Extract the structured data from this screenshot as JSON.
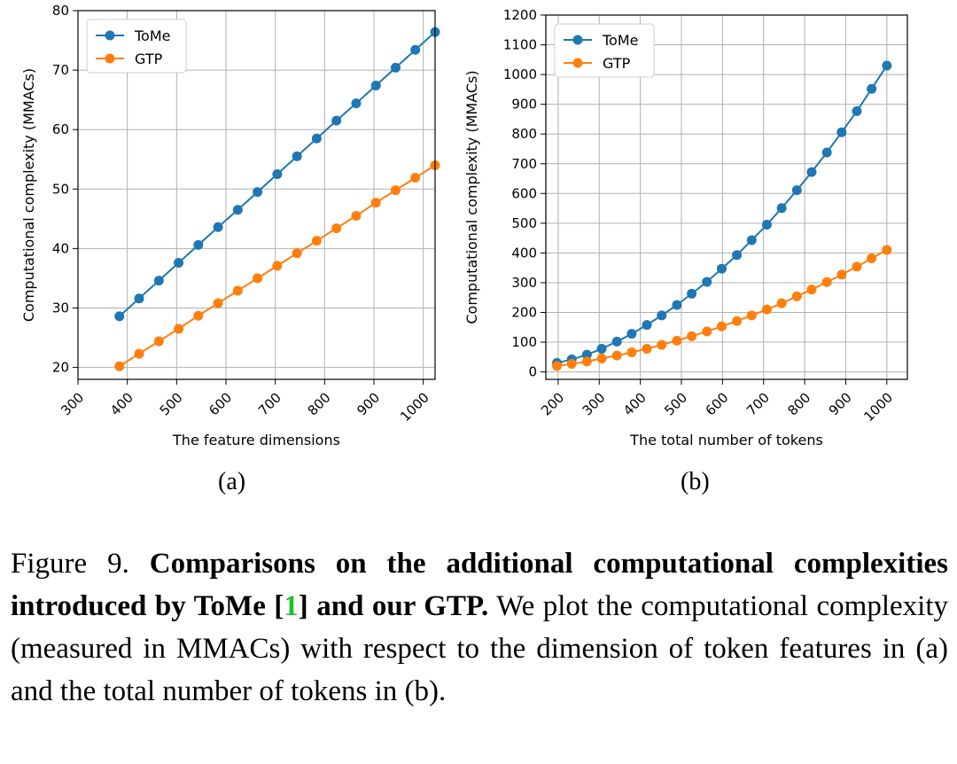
{
  "colors": {
    "tome": "#1f77b4",
    "gtp": "#ff7f0e",
    "grid": "#b0b0b0",
    "ref": "#1fbf2a"
  },
  "chart_data": [
    {
      "type": "line",
      "subcaption": "(a)",
      "xlabel": "The feature dimensions",
      "ylabel": "Computational complexity (MMACs)",
      "xlim": [
        300,
        1024
      ],
      "ylim": [
        18,
        80
      ],
      "xticks": [
        300,
        400,
        500,
        600,
        700,
        800,
        900,
        1000
      ],
      "yticks": [
        20,
        30,
        40,
        50,
        60,
        70,
        80
      ],
      "legend_position": "top-left",
      "x": [
        384,
        424,
        464,
        504,
        544,
        584,
        624,
        664,
        704,
        744,
        784,
        824,
        864,
        904,
        944,
        984,
        1024
      ],
      "series": [
        {
          "name": "ToMe",
          "color_key": "tome",
          "values": [
            28.6,
            31.6,
            34.6,
            37.6,
            40.6,
            43.6,
            46.5,
            49.5,
            52.5,
            55.5,
            58.5,
            61.5,
            64.4,
            67.4,
            70.4,
            73.4,
            76.4
          ]
        },
        {
          "name": "GTP",
          "color_key": "gtp",
          "values": [
            20.2,
            22.3,
            24.4,
            26.5,
            28.7,
            30.8,
            32.9,
            35.0,
            37.1,
            39.2,
            41.3,
            43.4,
            45.5,
            47.7,
            49.8,
            51.9,
            54.0
          ]
        }
      ]
    },
    {
      "type": "line",
      "subcaption": "(b)",
      "xlabel": "The total number of tokens",
      "ylabel": "Computational complexity (MMACs)",
      "xlim": [
        170,
        1050
      ],
      "ylim": [
        -25,
        1200
      ],
      "xticks": [
        200,
        300,
        400,
        500,
        600,
        700,
        800,
        900,
        1000
      ],
      "yticks": [
        0,
        100,
        200,
        300,
        400,
        500,
        600,
        700,
        800,
        900,
        1000,
        1100,
        1200
      ],
      "legend_position": "top-left",
      "x": [
        197,
        233,
        270,
        306,
        343,
        379,
        416,
        452,
        489,
        525,
        562,
        598,
        635,
        671,
        708,
        744,
        781,
        817,
        854,
        890,
        927,
        963,
        1000
      ],
      "series": [
        {
          "name": "ToMe",
          "color_key": "tome",
          "values": [
            30,
            42,
            58,
            78,
            102,
            128,
            158,
            190,
            225,
            263,
            303,
            347,
            393,
            443,
            495,
            551,
            611,
            672,
            738,
            806,
            877,
            952,
            1030
          ]
        },
        {
          "name": "GTP",
          "color_key": "gtp",
          "values": [
            20,
            27,
            35,
            45,
            55,
            66,
            78,
            91,
            105,
            120,
            136,
            153,
            171,
            190,
            210,
            231,
            254,
            277,
            302,
            327,
            354,
            382,
            410
          ]
        }
      ]
    }
  ],
  "caption": {
    "figure_label": "Figure 9.",
    "bold_part1": "Comparisons on the additional computational complexities introduced by ToMe [",
    "ref": "1",
    "bold_part2": "] and our GTP.",
    "body": "We plot the computational complexity (measured in MMACs) with respect to the dimension of token features in (a) and the total number of tokens in (b)."
  }
}
